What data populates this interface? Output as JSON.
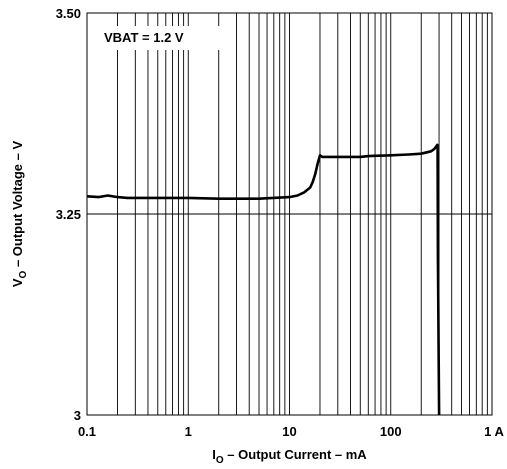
{
  "chart_data": {
    "type": "line",
    "x_scale": "log",
    "xlim": [
      0.1,
      1000
    ],
    "ylim": [
      3.0,
      3.5
    ],
    "grid": "x-log-minor",
    "xlabel": {
      "prefix": "I",
      "sub": "O",
      "rest": " – Output Current – mA"
    },
    "ylabel": {
      "prefix": "V",
      "sub": "O",
      "rest": " – Output Voltage – V"
    },
    "x_tick_labels": [
      {
        "value": 0.1,
        "label": "0.1"
      },
      {
        "value": 1,
        "label": "1"
      },
      {
        "value": 10,
        "label": "10"
      },
      {
        "value": 100,
        "label": "100"
      },
      {
        "value": 1000,
        "label": "1 A"
      }
    ],
    "y_tick_labels": [
      {
        "value": 3.5,
        "label": "3.50"
      },
      {
        "value": 3.25,
        "label": "3.25"
      },
      {
        "value": 3.0,
        "label": "3"
      }
    ],
    "hlines": [
      3.25
    ],
    "annotation": "VBAT = 1.2 V",
    "series": [
      {
        "x": [
          0.1,
          0.13,
          0.16,
          0.2,
          0.25,
          0.5,
          1,
          2,
          5,
          10,
          12,
          14,
          16,
          17,
          18,
          19,
          20,
          21,
          30,
          50,
          60,
          100,
          150,
          200,
          250,
          270,
          285,
          288,
          290,
          292,
          300
        ],
        "y": [
          3.272,
          3.271,
          3.273,
          3.271,
          3.27,
          3.27,
          3.27,
          3.269,
          3.269,
          3.271,
          3.273,
          3.277,
          3.283,
          3.29,
          3.3,
          3.313,
          3.323,
          3.321,
          3.321,
          3.321,
          3.322,
          3.323,
          3.324,
          3.325,
          3.328,
          3.331,
          3.335,
          3.336,
          3.33,
          3.2,
          3.0
        ]
      }
    ]
  }
}
